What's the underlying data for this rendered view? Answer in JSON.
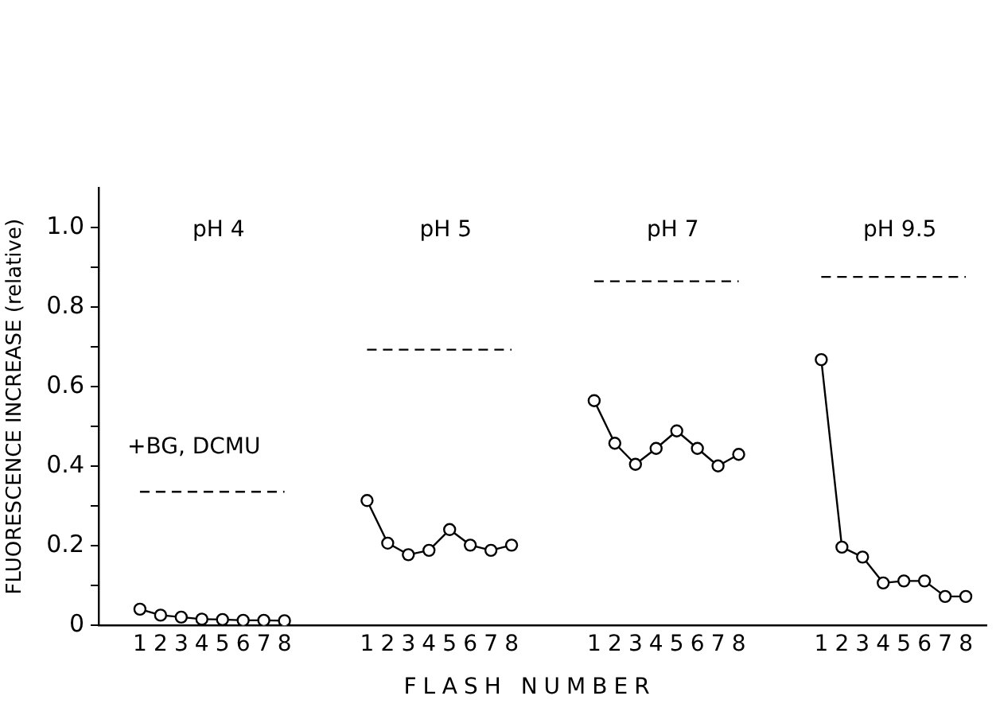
{
  "chart_data": {
    "type": "line",
    "xlabel": "FLASH NUMBER",
    "ylabel": "FLUORESCENCE INCREASE (relative)",
    "categories": [
      null,
      null,
      "1",
      "2",
      "3",
      "4",
      "5",
      "6",
      "7",
      "8",
      null,
      null,
      null,
      "1",
      "2",
      "3",
      "4",
      "5",
      "6",
      "7",
      "8",
      null,
      null,
      null,
      "1",
      "2",
      "3",
      "4",
      "5",
      "6",
      "7",
      "8",
      null,
      null,
      null,
      "1",
      "2",
      "3",
      "4",
      "5",
      "6",
      "7",
      "8",
      null
    ],
    "ylim": [
      0,
      1.1
    ],
    "yticks": [
      0,
      {
        "value": 0.1,
        "label": null
      },
      0.2,
      {
        "value": 0.3,
        "label": null
      },
      0.4,
      {
        "value": 0.5,
        "label": null
      },
      0.6,
      {
        "value": 0.7,
        "label": null
      },
      0.8,
      {
        "value": 0.9,
        "label": null
      },
      {
        "value": 1,
        "label": "1.0"
      }
    ],
    "marker": "circle",
    "series": [
      {
        "color": "#000000",
        "values": [
          null,
          null,
          0.041,
          0.026,
          0.021,
          0.016,
          0.015,
          0.013,
          0.013,
          0.012,
          null,
          null,
          null,
          null,
          null,
          null,
          null,
          null,
          null,
          null,
          null,
          null,
          null,
          null,
          null,
          null,
          null,
          null,
          null,
          null,
          null,
          null,
          null,
          null,
          null,
          null,
          null,
          null,
          null,
          null,
          null,
          null,
          null,
          null
        ]
      },
      {
        "type": "line",
        "line_style": "dashed",
        "marker": "none",
        "color": "#000000",
        "values": [
          null,
          null,
          0.336,
          0.336,
          0.336,
          0.336,
          0.336,
          0.336,
          0.336,
          0.336,
          null,
          null,
          null,
          null,
          null,
          null,
          null,
          null,
          null,
          null,
          null,
          null,
          null,
          null,
          null,
          null,
          null,
          null,
          null,
          null,
          null,
          null,
          null,
          null,
          null,
          null,
          null,
          null,
          null,
          null,
          null,
          null,
          null,
          null
        ]
      },
      {
        "color": "#000000",
        "values": [
          null,
          null,
          null,
          null,
          null,
          null,
          null,
          null,
          null,
          null,
          null,
          null,
          null,
          0.314,
          0.207,
          0.178,
          0.189,
          0.241,
          0.202,
          0.189,
          0.202,
          null,
          null,
          null,
          null,
          null,
          null,
          null,
          null,
          null,
          null,
          null,
          null,
          null,
          null,
          null,
          null,
          null,
          null,
          null,
          null,
          null,
          null,
          null
        ]
      },
      {
        "type": "line",
        "line_style": "dashed",
        "marker": "none",
        "color": "#000000",
        "values": [
          null,
          null,
          null,
          null,
          null,
          null,
          null,
          null,
          null,
          null,
          null,
          null,
          null,
          0.693,
          0.693,
          0.693,
          0.693,
          0.693,
          0.693,
          0.693,
          0.693,
          null,
          null,
          null,
          null,
          null,
          null,
          null,
          null,
          null,
          null,
          null,
          null,
          null,
          null,
          null,
          null,
          null,
          null,
          null,
          null,
          null,
          null,
          null
        ]
      },
      {
        "color": "#000000",
        "values": [
          null,
          null,
          null,
          null,
          null,
          null,
          null,
          null,
          null,
          null,
          null,
          null,
          null,
          null,
          null,
          null,
          null,
          null,
          null,
          null,
          null,
          null,
          null,
          null,
          0.565,
          0.458,
          0.405,
          0.445,
          0.489,
          0.445,
          0.401,
          0.43,
          null,
          null,
          null,
          null,
          null,
          null,
          null,
          null,
          null,
          null,
          null,
          null
        ]
      },
      {
        "type": "line",
        "line_style": "dashed",
        "marker": "none",
        "color": "#000000",
        "values": [
          null,
          null,
          null,
          null,
          null,
          null,
          null,
          null,
          null,
          null,
          null,
          null,
          null,
          null,
          null,
          null,
          null,
          null,
          null,
          null,
          null,
          null,
          null,
          null,
          0.865,
          0.865,
          0.865,
          0.865,
          0.865,
          0.865,
          0.865,
          0.865,
          null,
          null,
          null,
          null,
          null,
          null,
          null,
          null,
          null,
          null,
          null,
          null
        ]
      },
      {
        "color": "#000000",
        "values": [
          null,
          null,
          null,
          null,
          null,
          null,
          null,
          null,
          null,
          null,
          null,
          null,
          null,
          null,
          null,
          null,
          null,
          null,
          null,
          null,
          null,
          null,
          null,
          null,
          null,
          null,
          null,
          null,
          null,
          null,
          null,
          null,
          null,
          null,
          null,
          0.668,
          0.197,
          0.172,
          0.107,
          0.112,
          0.112,
          0.073,
          0.073,
          null
        ]
      },
      {
        "type": "line",
        "line_style": "dashed",
        "marker": "none",
        "color": "#000000",
        "values": [
          null,
          null,
          null,
          null,
          null,
          null,
          null,
          null,
          null,
          null,
          null,
          null,
          null,
          null,
          null,
          null,
          null,
          null,
          null,
          null,
          null,
          null,
          null,
          null,
          null,
          null,
          null,
          null,
          null,
          null,
          null,
          null,
          null,
          null,
          null,
          0.876,
          0.876,
          0.876,
          0.876,
          0.876,
          0.876,
          0.876,
          0.876,
          null
        ]
      }
    ],
    "annotations": [
      "pH 4",
      "pH 5",
      "pH 7",
      "pH 9.5",
      "+BG, DCMU"
    ]
  }
}
